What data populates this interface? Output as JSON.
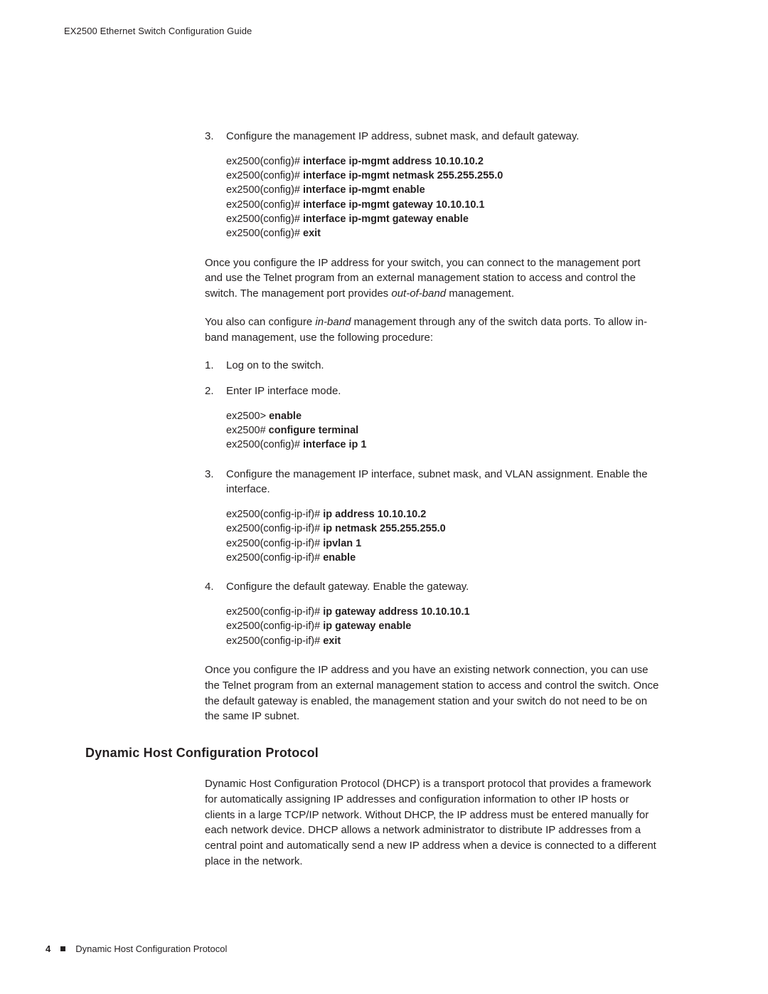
{
  "running_head": "EX2500 Ethernet Switch Configuration Guide",
  "step3a_num": "3.",
  "step3a_text": "Configure the management IP address, subnet mask, and default gateway.",
  "code1": {
    "l1p": "ex2500(config)# ",
    "l1c": "interface ip-mgmt address 10.10.10.2",
    "l2p": "ex2500(config)# ",
    "l2c": "interface ip-mgmt netmask 255.255.255.0",
    "l3p": "ex2500(config)# ",
    "l3c": "interface ip-mgmt enable",
    "l4p": "ex2500(config)# ",
    "l4c": "interface ip-mgmt gateway 10.10.10.1",
    "l5p": "ex2500(config)# ",
    "l5c": "interface ip-mgmt gateway enable",
    "l6p": "ex2500(config)# ",
    "l6c": "exit"
  },
  "para1a": "Once you configure the IP address for your switch, you can connect to the management port and use the Telnet program from an external management station to access and control the switch. The management port provides ",
  "para1_em": "out-of-band",
  "para1b": " management.",
  "para2a": "You also can configure ",
  "para2_em": "in-band",
  "para2b": " management through any of the switch data ports. To allow in-band management, use the following procedure:",
  "step1_num": "1.",
  "step1_text": "Log on to the switch.",
  "step2_num": "2.",
  "step2_text": "Enter IP interface mode.",
  "code2": {
    "l1p": "ex2500> ",
    "l1c": "enable",
    "l2p": "ex2500# ",
    "l2c": "configure terminal",
    "l3p": "ex2500(config)# ",
    "l3c": "interface ip 1"
  },
  "step3b_num": "3.",
  "step3b_text": "Configure the management IP interface, subnet mask, and VLAN assignment. Enable the interface.",
  "code3": {
    "l1p": "ex2500(config-ip-if)# ",
    "l1c": "ip address 10.10.10.2",
    "l2p": "ex2500(config-ip-if)# ",
    "l2c": "ip netmask 255.255.255.0",
    "l3p": "ex2500(config-ip-if)# ",
    "l3c": "ipvlan 1",
    "l4p": "ex2500(config-ip-if)# ",
    "l4c": "enable"
  },
  "step4_num": "4.",
  "step4_text": "Configure the default gateway. Enable the gateway.",
  "code4": {
    "l1p": "ex2500(config-ip-if)# ",
    "l1c": "ip gateway address 10.10.10.1",
    "l2p": "ex2500(config-ip-if)# ",
    "l2c": "ip gateway enable",
    "l3p": "ex2500(config-ip-if)# ",
    "l3c": "exit"
  },
  "para3": "Once you configure the IP address and you have an existing network connection, you can use the Telnet program from an external management station to access and control the switch. Once the default gateway is enabled, the management station and your switch do not need to be on the same IP subnet.",
  "section_head": "Dynamic Host Configuration Protocol",
  "para4": "Dynamic Host Configuration Protocol (DHCP) is a transport protocol that provides a framework for automatically assigning IP addresses and configuration information to other IP hosts or clients in a large TCP/IP network. Without DHCP, the IP address must be entered manually for each network device. DHCP allows a network administrator to distribute IP addresses from a central point and automatically send a new IP address when a device is connected to a different place in the network.",
  "footer_page": "4",
  "footer_text": "Dynamic Host Configuration Protocol"
}
